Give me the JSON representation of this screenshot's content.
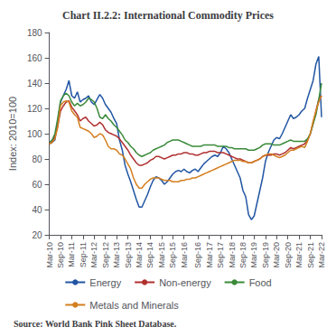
{
  "chart_data": {
    "type": "line",
    "title": "Chart II.2.2: International Commodity Prices",
    "ylabel": "Index: 2010=100",
    "source": "Source: World Bank Pink Sheet Database.",
    "categories": [
      "Mar-10",
      null,
      null,
      null,
      "Sep-10",
      null,
      null,
      null,
      "Mar-11",
      null,
      null,
      null,
      "Sep-11",
      null,
      null,
      null,
      "Mar-12",
      null,
      null,
      null,
      "Sep-12",
      null,
      null,
      null,
      "Mar-13",
      null,
      null,
      null,
      "Sep-13",
      null,
      null,
      null,
      "Mar-14",
      null,
      null,
      null,
      "Sep-14",
      null,
      null,
      null,
      "Mar-15",
      null,
      null,
      null,
      "Sep-15",
      null,
      null,
      null,
      "Mar-16",
      null,
      null,
      null,
      null,
      "Sep-16",
      null,
      null,
      null,
      "Mar-17",
      null,
      null,
      null,
      "Sep-17",
      null,
      null,
      null,
      "Mar-18",
      null,
      null,
      null,
      "Sep-18",
      null,
      null,
      null,
      "Mar-19",
      null,
      null,
      null,
      "Sep-19",
      null,
      null,
      null,
      "Mar-20",
      null,
      null,
      null,
      "Sep-20",
      null,
      null,
      null,
      "Mar-21",
      null,
      null,
      null,
      "Sep-21",
      null,
      null,
      null,
      "Mar-22"
    ],
    "series": [
      {
        "name": "Energy",
        "color": "#2155a3",
        "values": [
          92,
          93,
          95,
          110,
          125,
          130,
          135,
          142,
          130,
          128,
          133,
          125,
          127,
          128,
          130,
          125,
          123,
          127,
          131,
          128,
          123,
          120,
          117,
          112,
          108,
          95,
          87,
          75,
          68,
          62,
          55,
          48,
          42,
          42,
          47,
          52,
          58,
          63,
          66,
          65,
          63,
          60,
          62,
          65,
          68,
          70,
          71,
          70,
          72,
          70,
          69,
          71,
          72,
          70,
          73,
          76,
          78,
          80,
          82,
          83,
          82,
          85,
          90,
          88,
          85,
          80,
          75,
          70,
          65,
          55,
          50,
          36,
          32,
          35,
          45,
          55,
          65,
          78,
          85,
          90,
          95,
          97,
          96,
          100,
          105,
          110,
          115,
          112,
          113,
          115,
          118,
          120,
          128,
          135,
          142,
          155,
          161,
          113
        ]
      },
      {
        "name": "Non-energy",
        "color": "#b03030",
        "values": [
          92,
          94,
          98,
          106,
          118,
          122,
          125,
          126,
          121,
          118,
          115,
          110,
          112,
          113,
          110,
          108,
          106,
          107,
          109,
          107,
          103,
          101,
          100,
          99,
          98,
          96,
          93,
          90,
          87,
          83,
          80,
          77,
          75,
          75,
          76,
          77,
          79,
          80,
          82,
          82,
          81,
          80,
          81,
          82,
          83,
          83,
          84,
          84,
          85,
          85,
          84,
          84,
          83,
          83,
          84,
          85,
          85,
          86,
          86,
          86,
          85,
          85,
          85,
          84,
          83,
          82,
          81,
          80,
          80,
          79,
          78,
          77,
          77,
          78,
          79,
          80,
          82,
          83,
          83,
          83,
          84,
          84,
          83,
          84,
          85,
          87,
          89,
          88,
          89,
          90,
          91,
          92,
          95,
          100,
          108,
          118,
          127,
          130
        ]
      },
      {
        "name": "Food",
        "color": "#3a8a3a",
        "values": [
          93,
          95,
          100,
          112,
          126,
          130,
          132,
          130,
          125,
          122,
          124,
          122,
          123,
          125,
          128,
          127,
          125,
          120,
          113,
          112,
          115,
          112,
          110,
          107,
          105,
          102,
          99,
          95,
          93,
          90,
          88,
          85,
          83,
          82,
          83,
          84,
          85,
          87,
          88,
          89,
          90,
          91,
          93,
          94,
          95,
          95,
          95,
          94,
          93,
          92,
          91,
          90,
          90,
          90,
          90,
          91,
          91,
          91,
          91,
          91,
          90,
          90,
          90,
          90,
          89,
          89,
          88,
          88,
          88,
          88,
          88,
          87,
          87,
          87,
          88,
          89,
          91,
          92,
          92,
          92,
          91,
          91,
          91,
          92,
          93,
          94,
          95,
          94,
          94,
          94,
          94,
          94,
          96,
          100,
          108,
          115,
          127,
          140
        ]
      },
      {
        "name": "Metals and Minerals",
        "color": "#d47f20",
        "values": [
          92,
          93,
          96,
          105,
          122,
          125,
          126,
          125,
          118,
          115,
          113,
          105,
          104,
          103,
          102,
          100,
          97,
          98,
          100,
          99,
          95,
          90,
          88,
          88,
          87,
          84,
          83,
          80,
          76,
          72,
          65,
          60,
          57,
          57,
          60,
          62,
          64,
          65,
          65,
          65,
          64,
          63,
          63,
          63,
          62,
          62,
          62,
          63,
          63,
          64,
          64,
          65,
          65,
          66,
          67,
          68,
          69,
          70,
          71,
          72,
          73,
          74,
          75,
          76,
          77,
          78,
          79,
          79,
          79,
          78,
          78,
          77,
          77,
          78,
          79,
          80,
          82,
          83,
          84,
          84,
          83,
          82,
          81,
          82,
          83,
          85,
          87,
          87,
          88,
          89,
          90,
          89,
          94,
          100,
          110,
          118,
          125,
          130
        ]
      }
    ],
    "ylim": [
      20,
      180
    ],
    "yticks": [
      20,
      40,
      60,
      80,
      100,
      120,
      140,
      160,
      180
    ],
    "grid": false,
    "legend": "bottom"
  }
}
